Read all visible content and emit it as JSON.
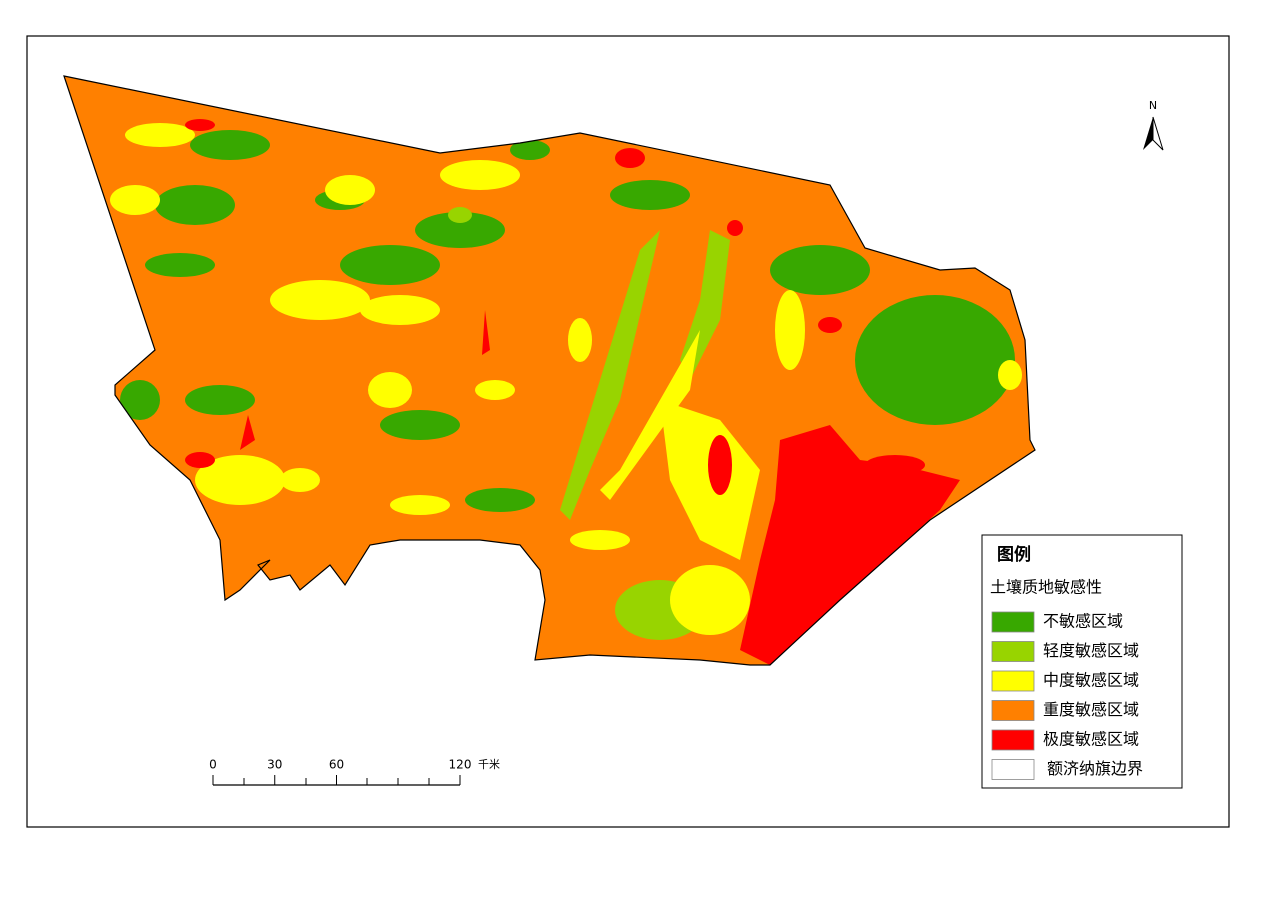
{
  "legend": {
    "title": "图例",
    "subtitle": "土壤质地敏感性",
    "items": [
      {
        "label": "不敏感区域",
        "color": "#38a800"
      },
      {
        "label": "轻度敏感区域",
        "color": "#98d400"
      },
      {
        "label": "中度敏感区域",
        "color": "#ffff00"
      },
      {
        "label": "重度敏感区域",
        "color": "#ff8000"
      },
      {
        "label": "极度敏感区域",
        "color": "#ff0000"
      },
      {
        "label": "额济纳旗边界",
        "color": "#ffffff"
      }
    ]
  },
  "scale_bar": {
    "ticks": [
      0,
      30,
      60,
      120
    ],
    "unit": "千米"
  },
  "north_arrow": "N"
}
